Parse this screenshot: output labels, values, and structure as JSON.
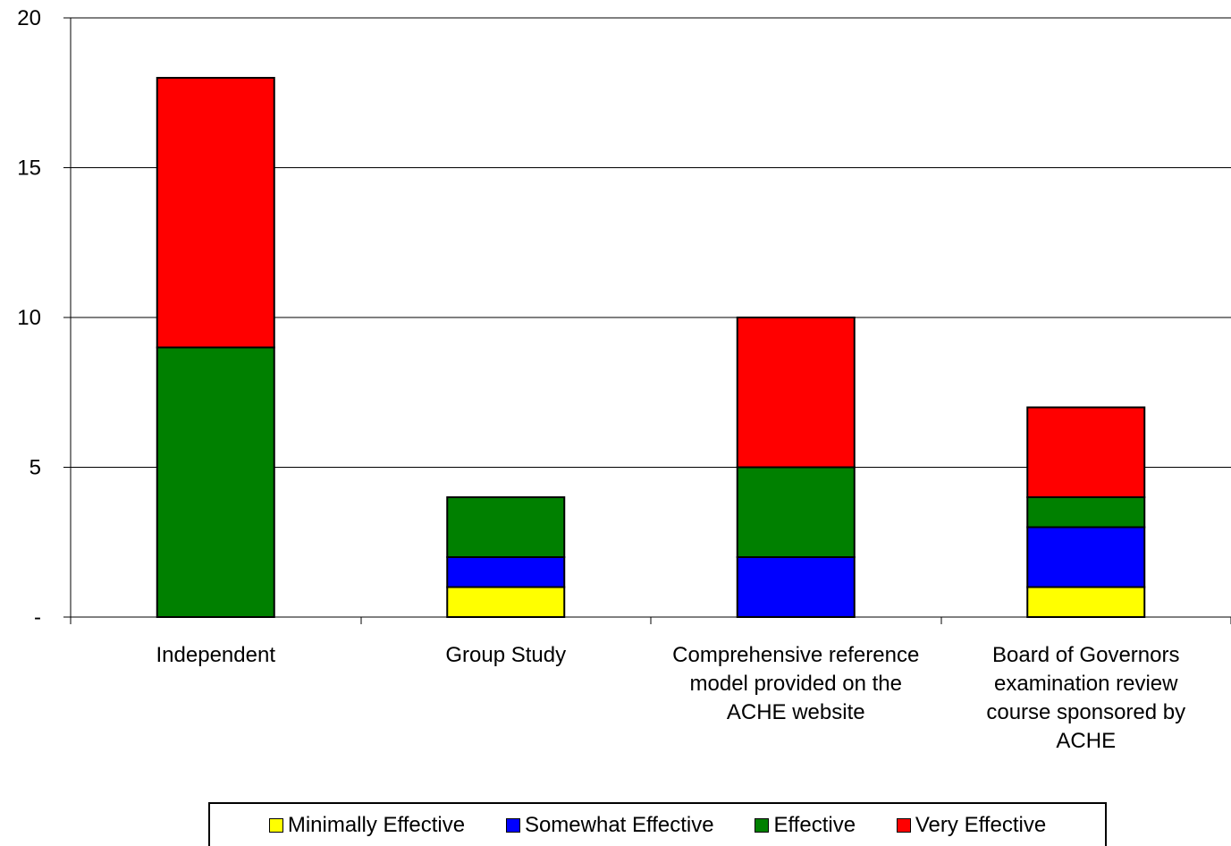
{
  "chart_data": {
    "type": "bar",
    "stacked": true,
    "title": "",
    "xlabel": "",
    "ylabel": "",
    "ylim": [
      0,
      20
    ],
    "yticks": [
      {
        "value": 0,
        "label": "-"
      },
      {
        "value": 5,
        "label": "5"
      },
      {
        "value": 10,
        "label": "10"
      },
      {
        "value": 15,
        "label": "15"
      },
      {
        "value": 20,
        "label": "20"
      }
    ],
    "grid": true,
    "legend_position": "bottom",
    "categories": [
      "Independent",
      "Group Study",
      "Comprehensive reference model provided on the ACHE website",
      "Board of Governors examination review course sponsored by ACHE"
    ],
    "category_lines": [
      [
        "Independent"
      ],
      [
        "Group Study"
      ],
      [
        "Comprehensive reference",
        "model provided on the",
        "ACHE website"
      ],
      [
        "Board of Governors",
        "examination review",
        "course sponsored by",
        "ACHE"
      ]
    ],
    "series": [
      {
        "name": "Minimally Effective",
        "color": "#ffff00",
        "values": [
          0,
          1,
          0,
          1
        ]
      },
      {
        "name": "Somewhat Effective",
        "color": "#0000ff",
        "values": [
          0,
          1,
          2,
          2
        ]
      },
      {
        "name": "Effective",
        "color": "#008000",
        "values": [
          9,
          2,
          3,
          1
        ]
      },
      {
        "name": "Very Effective",
        "color": "#ff0000",
        "values": [
          9,
          0,
          5,
          3
        ]
      }
    ]
  }
}
